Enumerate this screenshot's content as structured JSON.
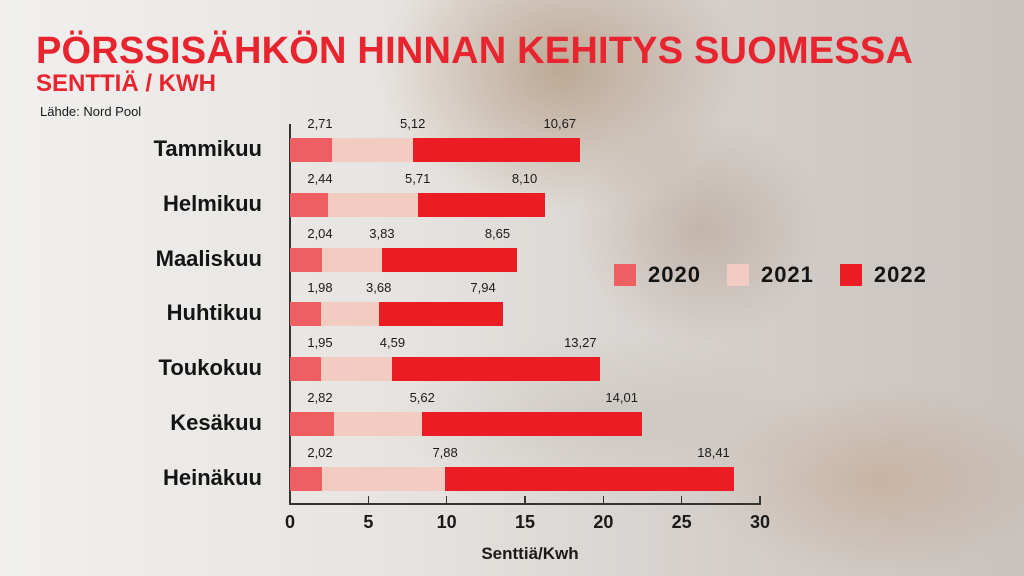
{
  "header": {
    "title": "PÖRSSISÄHKÖN HINNAN KEHITYS SUOMESSA",
    "subtitle": "SENTTIÄ / KWH",
    "source": "Lähde: Nord Pool"
  },
  "colors": {
    "title": "#e8242f",
    "2020": "#ef5f62",
    "2021": "#f2cbc1",
    "2022": "#ec1c24"
  },
  "legend": [
    {
      "label": "2020",
      "color": "#ef5f62"
    },
    {
      "label": "2021",
      "color": "#f2cbc1"
    },
    {
      "label": "2022",
      "color": "#ec1c24"
    }
  ],
  "axis": {
    "xlabel": "Senttiä/Kwh",
    "ticks": [
      "0",
      "5",
      "10",
      "15",
      "20",
      "25",
      "30"
    ]
  },
  "rows": [
    {
      "label": "Tammikuu",
      "v2020": "2,71",
      "v2021": "5,12",
      "v2022": "10,67"
    },
    {
      "label": "Helmikuu",
      "v2020": "2,44",
      "v2021": "5,71",
      "v2022": "8,10"
    },
    {
      "label": "Maaliskuu",
      "v2020": "2,04",
      "v2021": "3,83",
      "v2022": "8,65"
    },
    {
      "label": "Huhtikuu",
      "v2020": "1,98",
      "v2021": "3,68",
      "v2022": "7,94"
    },
    {
      "label": "Toukokuu",
      "v2020": "1,95",
      "v2021": "4,59",
      "v2022": "13,27"
    },
    {
      "label": "Kesäkuu",
      "v2020": "2,82",
      "v2021": "5,62",
      "v2022": "14,01"
    },
    {
      "label": "Heinäkuu",
      "v2020": "2,02",
      "v2021": "7,88",
      "v2022": "18,41"
    }
  ],
  "chart_data": {
    "type": "bar",
    "orientation": "horizontal",
    "stacked": true,
    "title": "PÖRSSISÄHKÖN HINNAN KEHITYS SUOMESSA",
    "subtitle": "SENTTIÄ / KWH",
    "source": "Lähde: Nord Pool",
    "categories": [
      "Tammikuu",
      "Helmikuu",
      "Maaliskuu",
      "Huhtikuu",
      "Toukokuu",
      "Kesäkuu",
      "Heinäkuu"
    ],
    "series": [
      {
        "name": "2020",
        "color": "#ef5f62",
        "values": [
          2.71,
          2.44,
          2.04,
          1.98,
          1.95,
          2.82,
          2.02
        ]
      },
      {
        "name": "2021",
        "color": "#f2cbc1",
        "values": [
          5.12,
          5.71,
          3.83,
          3.68,
          4.59,
          5.62,
          7.88
        ]
      },
      {
        "name": "2022",
        "color": "#ec1c24",
        "values": [
          10.67,
          8.1,
          8.65,
          7.94,
          13.27,
          14.01,
          18.41
        ]
      }
    ],
    "xlabel": "Senttiä/Kwh",
    "ylabel": "",
    "xlim": [
      0,
      30
    ],
    "xticks": [
      0,
      5,
      10,
      15,
      20,
      25,
      30
    ],
    "grid": false,
    "legend_position": "right-middle",
    "data_labels": true
  }
}
